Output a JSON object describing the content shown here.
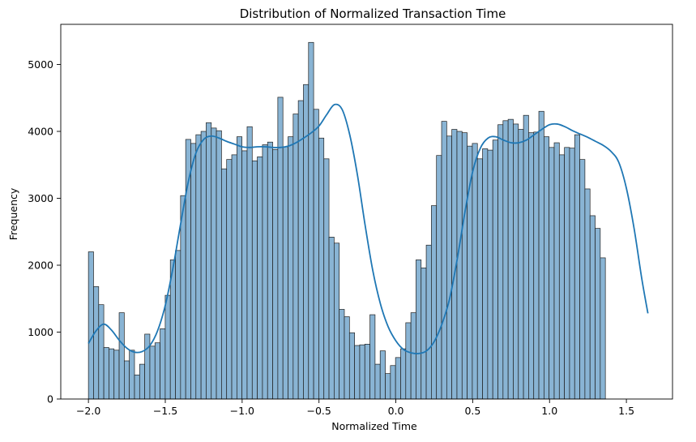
{
  "chart_data": {
    "type": "bar",
    "title": "Distribution of Normalized Transaction Time",
    "xlabel": "Normalized Time",
    "ylabel": "Frequency",
    "xlim": [
      -2.18,
      1.8
    ],
    "ylim": [
      0,
      5600
    ],
    "xticks": [
      -2.0,
      -1.5,
      -1.0,
      -0.5,
      0.0,
      0.5,
      1.0,
      1.5
    ],
    "xtick_labels": [
      "−2.0",
      "−1.5",
      "−1.0",
      "−0.5",
      "0.0",
      "0.5",
      "1.0",
      "1.5"
    ],
    "yticks": [
      0,
      1000,
      2000,
      3000,
      4000,
      5000
    ],
    "ytick_labels": [
      "0",
      "1000",
      "2000",
      "3000",
      "4000",
      "5000"
    ],
    "grid": false,
    "bin_start": -2.0,
    "bin_width": 0.0333,
    "bar_color": "#89b4d4",
    "bar_edge_color": "#1f1f1f",
    "kde_color": "#1f77b4",
    "values": [
      2200,
      1680,
      1410,
      770,
      750,
      730,
      1290,
      570,
      730,
      360,
      520,
      970,
      790,
      840,
      1050,
      1550,
      2080,
      2220,
      3040,
      3880,
      3820,
      3950,
      4000,
      4130,
      4050,
      4010,
      3440,
      3580,
      3650,
      3920,
      3710,
      4070,
      3560,
      3620,
      3800,
      3840,
      3730,
      4510,
      3770,
      3920,
      4260,
      4460,
      4700,
      5330,
      4330,
      3900,
      3590,
      2420,
      2330,
      1340,
      1230,
      990,
      800,
      810,
      820,
      1260,
      520,
      720,
      380,
      500,
      620,
      750,
      1140,
      1290,
      2080,
      1960,
      2300,
      2890,
      3640,
      4150,
      3930,
      4030,
      4000,
      3980,
      3780,
      3820,
      3590,
      3740,
      3720,
      3870,
      4100,
      4160,
      4180,
      4110,
      4030,
      4240,
      3980,
      3990,
      4300,
      3920,
      3760,
      3830,
      3650,
      3760,
      3750,
      3950,
      3580,
      3140,
      2740,
      2550,
      2110
    ],
    "kde_x": [
      -2.0,
      -1.95,
      -1.9,
      -1.85,
      -1.8,
      -1.75,
      -1.7,
      -1.65,
      -1.6,
      -1.55,
      -1.5,
      -1.45,
      -1.4,
      -1.35,
      -1.3,
      -1.25,
      -1.2,
      -1.15,
      -1.1,
      -1.05,
      -1.0,
      -0.95,
      -0.9,
      -0.85,
      -0.8,
      -0.75,
      -0.7,
      -0.65,
      -0.6,
      -0.55,
      -0.5,
      -0.45,
      -0.4,
      -0.35,
      -0.3,
      -0.25,
      -0.2,
      -0.15,
      -0.1,
      -0.05,
      0.0,
      0.05,
      0.1,
      0.15,
      0.2,
      0.25,
      0.3,
      0.35,
      0.4,
      0.45,
      0.5,
      0.55,
      0.6,
      0.65,
      0.7,
      0.75,
      0.8,
      0.85,
      0.9,
      0.95,
      1.0,
      1.05,
      1.1,
      1.15,
      1.2,
      1.25,
      1.3,
      1.35,
      1.4,
      1.45,
      1.5,
      1.55,
      1.6,
      1.64
    ],
    "kde_y": [
      830,
      1020,
      1120,
      1030,
      880,
      760,
      700,
      710,
      800,
      1020,
      1400,
      1960,
      2620,
      3250,
      3680,
      3880,
      3930,
      3900,
      3850,
      3810,
      3770,
      3760,
      3770,
      3770,
      3760,
      3760,
      3780,
      3830,
      3900,
      3980,
      4080,
      4250,
      4400,
      4330,
      3950,
      3350,
      2600,
      1920,
      1420,
      1080,
      870,
      740,
      690,
      680,
      720,
      860,
      1120,
      1500,
      2100,
      2800,
      3400,
      3750,
      3900,
      3920,
      3870,
      3830,
      3830,
      3870,
      3950,
      4030,
      4100,
      4110,
      4070,
      4010,
      3960,
      3910,
      3850,
      3790,
      3700,
      3540,
      3150,
      2550,
      1800,
      1280
    ]
  }
}
